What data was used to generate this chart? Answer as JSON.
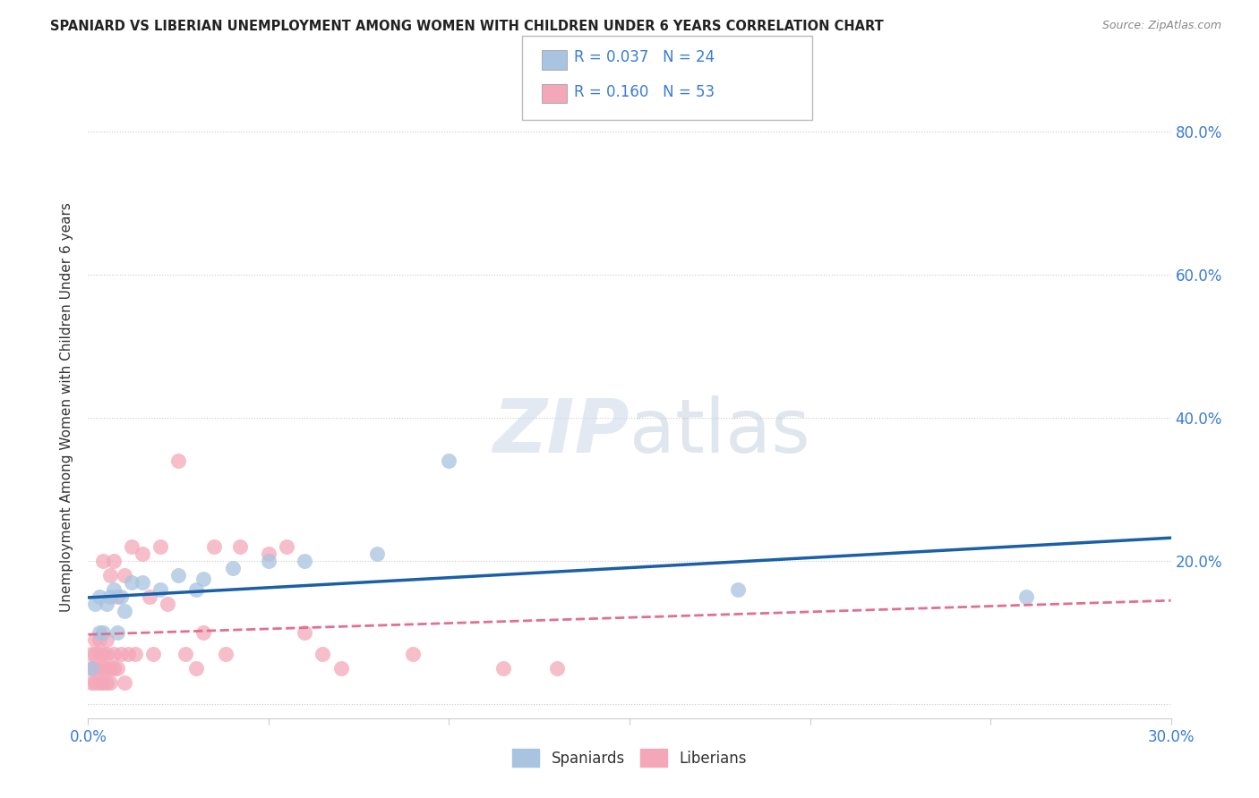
{
  "title": "SPANIARD VS LIBERIAN UNEMPLOYMENT AMONG WOMEN WITH CHILDREN UNDER 6 YEARS CORRELATION CHART",
  "source": "Source: ZipAtlas.com",
  "ylabel": "Unemployment Among Women with Children Under 6 years",
  "xlim": [
    0.0,
    0.3
  ],
  "ylim": [
    -0.02,
    0.85
  ],
  "x_ticks": [
    0.0,
    0.05,
    0.1,
    0.15,
    0.2,
    0.25,
    0.3
  ],
  "y_ticks": [
    0.0,
    0.2,
    0.4,
    0.6,
    0.8
  ],
  "y_tick_labels": [
    "",
    "20.0%",
    "40.0%",
    "60.0%",
    "80.0%"
  ],
  "x_tick_labels": [
    "0.0%",
    "",
    "",
    "",
    "",
    "",
    "30.0%"
  ],
  "spaniards_R": 0.037,
  "spaniards_N": 24,
  "liberians_R": 0.16,
  "liberians_N": 53,
  "spaniard_color": "#a8c4e0",
  "liberian_color": "#f4a7b9",
  "spaniard_line_color": "#1a5fa8",
  "liberian_line_color": "#e07090",
  "spaniards_x": [
    0.001,
    0.002,
    0.003,
    0.003,
    0.004,
    0.005,
    0.006,
    0.007,
    0.008,
    0.009,
    0.01,
    0.012,
    0.015,
    0.02,
    0.025,
    0.03,
    0.032,
    0.04,
    0.05,
    0.06,
    0.08,
    0.1,
    0.18,
    0.26
  ],
  "spaniards_y": [
    0.05,
    0.14,
    0.1,
    0.15,
    0.1,
    0.14,
    0.15,
    0.16,
    0.1,
    0.15,
    0.13,
    0.17,
    0.17,
    0.16,
    0.18,
    0.16,
    0.175,
    0.19,
    0.2,
    0.2,
    0.21,
    0.34,
    0.16,
    0.15
  ],
  "liberians_x": [
    0.001,
    0.001,
    0.001,
    0.002,
    0.002,
    0.002,
    0.002,
    0.003,
    0.003,
    0.003,
    0.003,
    0.004,
    0.004,
    0.004,
    0.004,
    0.005,
    0.005,
    0.005,
    0.005,
    0.006,
    0.006,
    0.006,
    0.007,
    0.007,
    0.007,
    0.008,
    0.008,
    0.009,
    0.01,
    0.01,
    0.011,
    0.012,
    0.013,
    0.015,
    0.017,
    0.018,
    0.02,
    0.022,
    0.025,
    0.027,
    0.03,
    0.032,
    0.035,
    0.038,
    0.042,
    0.05,
    0.055,
    0.06,
    0.065,
    0.07,
    0.09,
    0.115,
    0.13
  ],
  "liberians_y": [
    0.03,
    0.05,
    0.07,
    0.03,
    0.05,
    0.07,
    0.09,
    0.03,
    0.05,
    0.07,
    0.09,
    0.03,
    0.05,
    0.07,
    0.2,
    0.03,
    0.05,
    0.07,
    0.09,
    0.03,
    0.05,
    0.18,
    0.05,
    0.07,
    0.2,
    0.05,
    0.15,
    0.07,
    0.03,
    0.18,
    0.07,
    0.22,
    0.07,
    0.21,
    0.15,
    0.07,
    0.22,
    0.14,
    0.34,
    0.07,
    0.05,
    0.1,
    0.22,
    0.07,
    0.22,
    0.21,
    0.22,
    0.1,
    0.07,
    0.05,
    0.07,
    0.05,
    0.05
  ],
  "background_color": "#ffffff",
  "grid_color": "#cccccc"
}
